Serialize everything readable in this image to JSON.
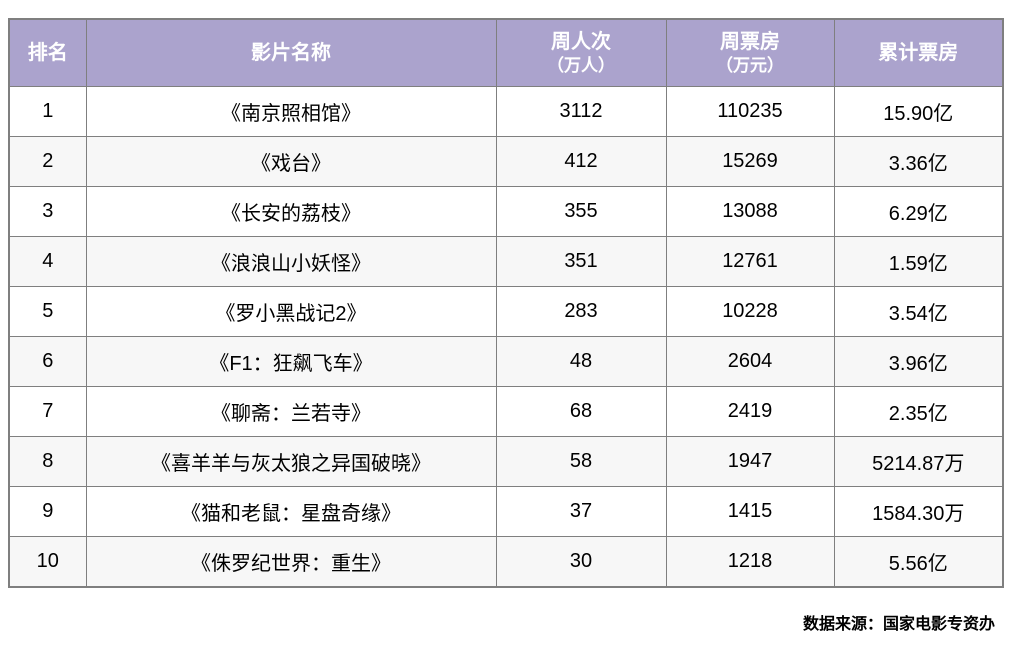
{
  "colors": {
    "header_bg": "#aba3cd",
    "header_text": "#ffffff",
    "grid_border": "#7f7f7f",
    "row_alt_bg": "#f7f7f7",
    "body_text": "#000000"
  },
  "chart_data": {
    "type": "table",
    "title": "",
    "columns": [
      {
        "label": "排名",
        "sub": ""
      },
      {
        "label": "影片名称",
        "sub": ""
      },
      {
        "label": "周人次",
        "sub": "（万人）"
      },
      {
        "label": "周票房",
        "sub": "（万元）"
      },
      {
        "label": "累计票房",
        "sub": ""
      }
    ],
    "rows": [
      [
        "1",
        "《南京照相馆》",
        "3112",
        "110235",
        "15.90亿"
      ],
      [
        "2",
        "《戏台》",
        "412",
        "15269",
        "3.36亿"
      ],
      [
        "3",
        "《长安的荔枝》",
        "355",
        "13088",
        "6.29亿"
      ],
      [
        "4",
        "《浪浪山小妖怪》",
        "351",
        "12761",
        "1.59亿"
      ],
      [
        "5",
        "《罗小黑战记2》",
        "283",
        "10228",
        "3.54亿"
      ],
      [
        "6",
        "《F1：狂飙飞车》",
        "48",
        "2604",
        "3.96亿"
      ],
      [
        "7",
        "《聊斋：兰若寺》",
        "68",
        "2419",
        "2.35亿"
      ],
      [
        "8",
        "《喜羊羊与灰太狼之异国破晓》",
        "58",
        "1947",
        "5214.87万"
      ],
      [
        "9",
        "《猫和老鼠：星盘奇缘》",
        "37",
        "1415",
        "1584.30万"
      ],
      [
        "10",
        "《侏罗纪世界：重生》",
        "30",
        "1218",
        "5.56亿"
      ]
    ],
    "source_note": "数据来源：国家电影专资办"
  }
}
